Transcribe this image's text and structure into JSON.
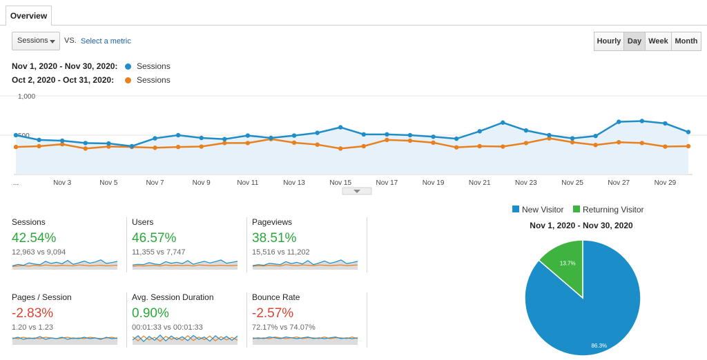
{
  "tabs": {
    "overview": "Overview"
  },
  "controls": {
    "metric_select": "Sessions",
    "vs": "VS.",
    "select_metric": "Select a metric",
    "periods": [
      "Hourly",
      "Day",
      "Week",
      "Month"
    ],
    "active_period": "Day"
  },
  "legend": {
    "current_range": "Nov 1, 2020 - Nov 30, 2020:",
    "current_metric": "Sessions",
    "previous_range": "Oct 2, 2020 - Oct 31, 2020:",
    "previous_metric": "Sessions"
  },
  "colors": {
    "current": "#1f8dc8",
    "previous": "#e8801f",
    "area": "#e6f1fa",
    "positive": "#2aa83a",
    "negative": "#d94433",
    "new_visitor": "#1b8ec9",
    "returning_visitor": "#3fb33f"
  },
  "chart_data": [
    {
      "type": "line",
      "y_ticks": [
        "1,000",
        "500"
      ],
      "ylim": [
        0,
        1000
      ],
      "x_tick_labels": [
        "...",
        "Nov 3",
        "Nov 5",
        "Nov 7",
        "Nov 9",
        "Nov 11",
        "Nov 13",
        "Nov 15",
        "Nov 17",
        "Nov 19",
        "Nov 21",
        "Nov 23",
        "Nov 25",
        "Nov 27",
        "Nov 29"
      ],
      "x": [
        1,
        2,
        3,
        4,
        5,
        6,
        7,
        8,
        9,
        10,
        11,
        12,
        13,
        14,
        15,
        16,
        17,
        18,
        19,
        20,
        21,
        22,
        23,
        24,
        25,
        26,
        27,
        28,
        29,
        30
      ],
      "series": [
        {
          "name": "Nov 1, 2020 - Nov 30, 2020: Sessions",
          "values": [
            500,
            440,
            430,
            400,
            395,
            360,
            460,
            500,
            465,
            450,
            495,
            465,
            495,
            530,
            600,
            510,
            510,
            500,
            480,
            455,
            550,
            660,
            560,
            500,
            460,
            490,
            670,
            680,
            650,
            540
          ]
        },
        {
          "name": "Oct 2, 2020 - Oct 31, 2020: Sessions",
          "values": [
            350,
            360,
            385,
            330,
            355,
            350,
            340,
            350,
            355,
            400,
            400,
            450,
            405,
            380,
            330,
            360,
            440,
            430,
            405,
            345,
            360,
            355,
            400,
            460,
            410,
            375,
            410,
            400,
            355,
            360
          ]
        }
      ]
    },
    {
      "type": "pie",
      "title": "Nov 1, 2020 - Nov 30, 2020",
      "labels": [
        "New Visitor",
        "Returning Visitor"
      ],
      "values": [
        86.3,
        13.7
      ],
      "value_labels": [
        "86.3%",
        "13.7%"
      ]
    }
  ],
  "kpis": [
    {
      "title": "Sessions",
      "change": "42.54%",
      "direction": "up",
      "comparison": "12,963 vs 9,094",
      "spark_current": [
        40,
        45,
        42,
        50,
        46,
        44,
        55,
        48,
        52,
        47,
        58,
        45,
        50,
        56,
        49,
        53,
        60,
        48,
        51,
        55
      ],
      "spark_previous": [
        38,
        40,
        41,
        39,
        42,
        40,
        43,
        41,
        40,
        42,
        41,
        40,
        43,
        42,
        40,
        41,
        42,
        40,
        41,
        42
      ]
    },
    {
      "title": "Users",
      "change": "46.57%",
      "direction": "up",
      "comparison": "11,355 vs 7,747",
      "spark_current": [
        42,
        44,
        43,
        49,
        45,
        43,
        52,
        47,
        50,
        46,
        55,
        44,
        49,
        53,
        48,
        52,
        57,
        47,
        50,
        53
      ],
      "spark_previous": [
        38,
        40,
        39,
        40,
        41,
        39,
        42,
        40,
        41,
        40,
        41,
        39,
        42,
        41,
        40,
        40,
        41,
        40,
        40,
        41
      ]
    },
    {
      "title": "Pageviews",
      "change": "38.51%",
      "direction": "up",
      "comparison": "15,516 vs 11,202",
      "spark_current": [
        41,
        44,
        42,
        48,
        46,
        44,
        53,
        47,
        51,
        46,
        56,
        44,
        49,
        55,
        48,
        52,
        58,
        47,
        50,
        54
      ],
      "spark_previous": [
        39,
        41,
        40,
        42,
        41,
        40,
        44,
        42,
        41,
        43,
        42,
        41,
        43,
        42,
        41,
        42,
        43,
        41,
        42,
        43
      ]
    },
    {
      "title": "Pages / Session",
      "change": "-2.83%",
      "direction": "down",
      "comparison": "1.20 vs 1.23",
      "spark_current": [
        50,
        52,
        49,
        51,
        50,
        53,
        49,
        51,
        50,
        52,
        49,
        51,
        50,
        52,
        50,
        51,
        49,
        52,
        50,
        51
      ],
      "spark_previous": [
        51,
        50,
        52,
        50,
        51,
        50,
        52,
        51,
        50,
        51,
        52,
        50,
        51,
        50,
        52,
        51,
        50,
        51,
        52,
        50
      ]
    },
    {
      "title": "Avg. Session Duration",
      "change": "0.90%",
      "direction": "up",
      "comparison": "00:01:33 vs 00:01:33",
      "spark_current": [
        45,
        58,
        40,
        56,
        44,
        60,
        42,
        57,
        46,
        55,
        43,
        59,
        47,
        54,
        41,
        58,
        45,
        56,
        44,
        57
      ],
      "spark_previous": [
        55,
        42,
        57,
        45,
        53,
        41,
        56,
        47,
        52,
        44,
        58,
        43,
        54,
        46,
        57,
        42,
        55,
        45,
        53,
        44
      ]
    },
    {
      "title": "Bounce Rate",
      "change": "-2.57%",
      "direction": "down",
      "comparison": "72.17% vs 74.07%",
      "spark_current": [
        50,
        51,
        50,
        52,
        51,
        50,
        52,
        51,
        50,
        51,
        52,
        50,
        51,
        50,
        51,
        52,
        50,
        51,
        50,
        51
      ],
      "spark_previous": [
        51,
        50,
        51,
        50,
        52,
        51,
        50,
        51,
        52,
        50,
        51,
        51,
        50,
        52,
        50,
        51,
        51,
        50,
        52,
        50
      ]
    }
  ]
}
